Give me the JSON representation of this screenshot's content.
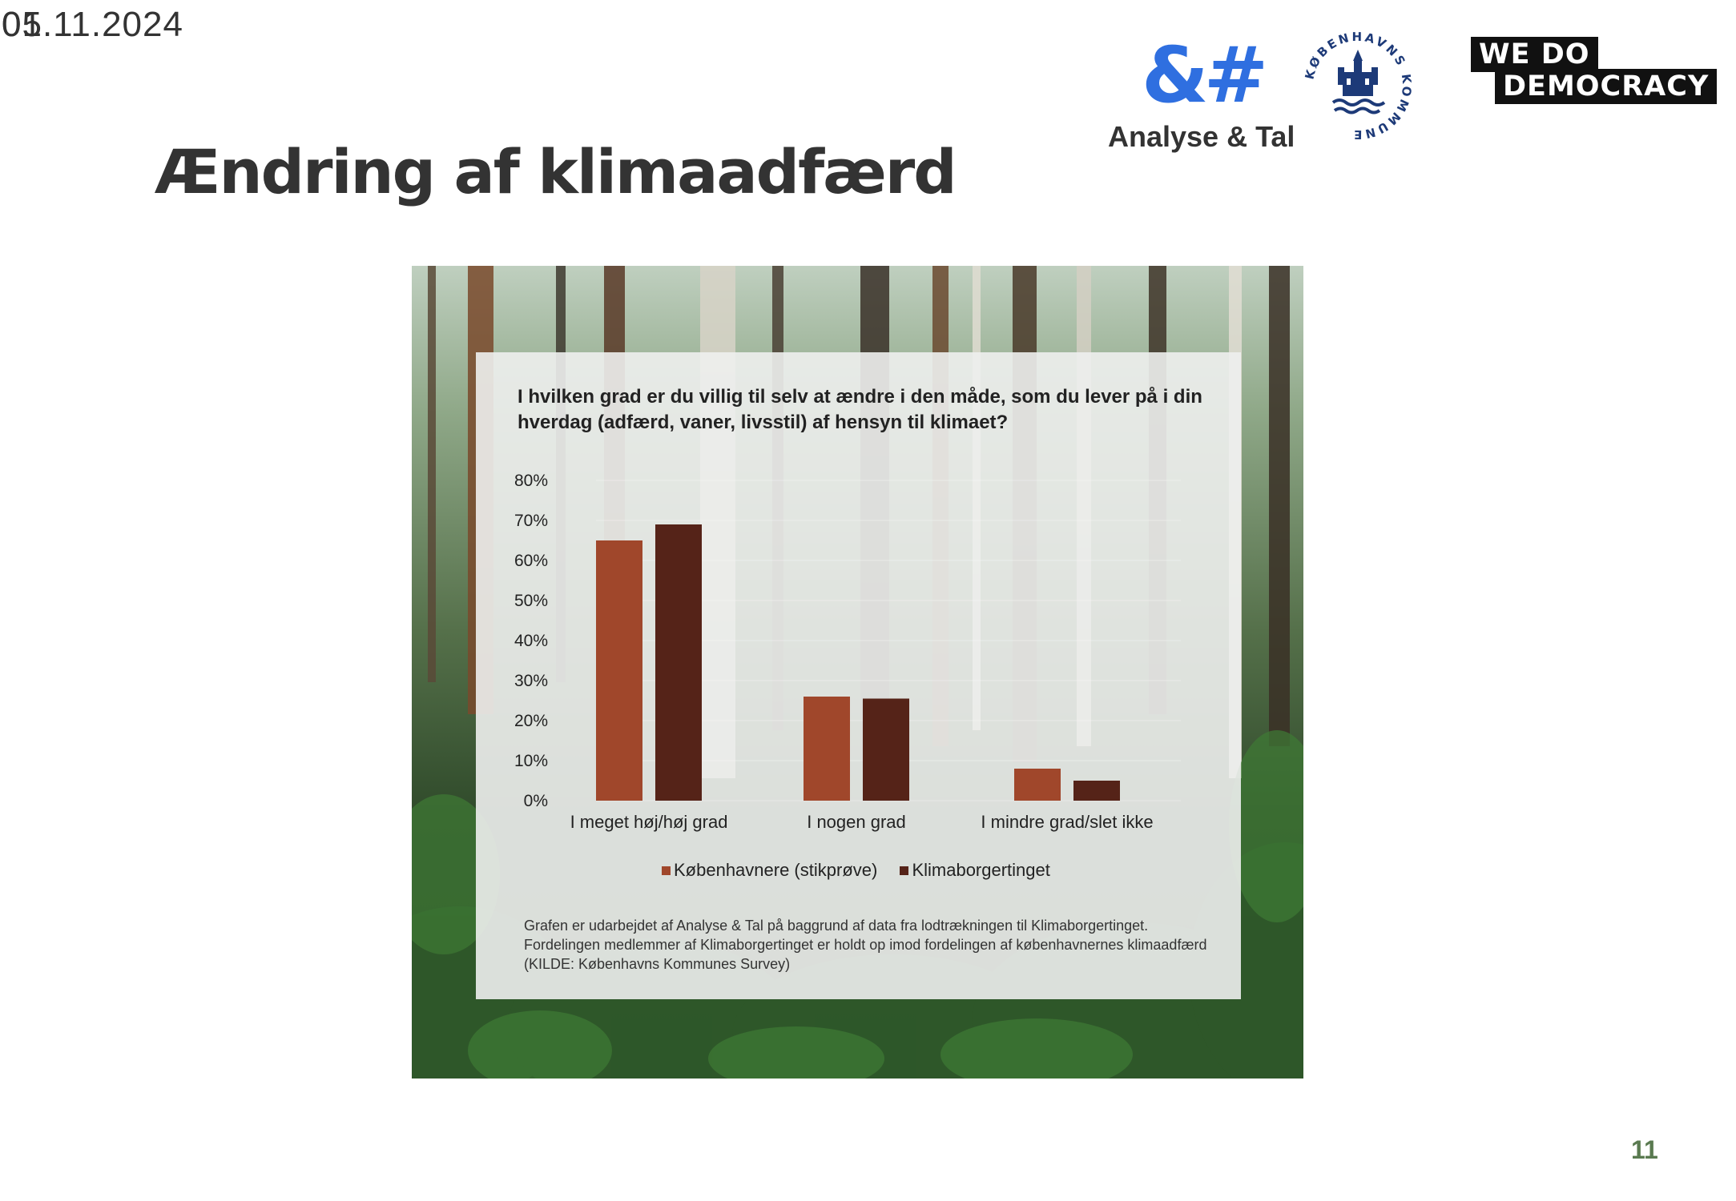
{
  "header": {
    "date": "05.11.2024",
    "date_overlay": "01",
    "title": "Ændring af klimaadfærd",
    "page_number": "11"
  },
  "logos": {
    "analyse_tal": {
      "mark": "&#",
      "name": "Analyse & Tal",
      "color": "#2f6fe0"
    },
    "kobenhavns_kommune": {
      "text": "KØBENHAVNS KOMMUNE"
    },
    "we_do_democracy": {
      "line1": "WE  DO",
      "line2": "DEMOCRACY"
    }
  },
  "chart_data": {
    "type": "bar",
    "title": "I hvilken grad er du villig til selv at ændre i den måde, som du lever på i din hverdag (adfærd, vaner, livsstil) af hensyn til klimaet?",
    "categories": [
      "I meget høj/høj grad",
      "I nogen grad",
      "I mindre grad/slet ikke"
    ],
    "series": [
      {
        "name": "Københavnere (stikprøve)",
        "color": "#a0472b",
        "values": [
          65,
          26,
          8
        ]
      },
      {
        "name": "Klimaborgertinget",
        "color": "#552318",
        "values": [
          69,
          25.5,
          5
        ]
      }
    ],
    "yticks": [
      "0%",
      "10%",
      "20%",
      "30%",
      "40%",
      "50%",
      "60%",
      "70%",
      "80%"
    ],
    "ylim": [
      0,
      80
    ],
    "legend_position": "bottom",
    "footnote": "Grafen er udarbejdet af Analyse & Tal på baggrund  af data fra lodtrækningen til Klimaborgertinget. Fordelingen medlemmer af Klimaborgertinget er holdt op imod fordelingen af københavnernes klimaadfærd (KILDE: Københavns Kommunes Survey)"
  }
}
